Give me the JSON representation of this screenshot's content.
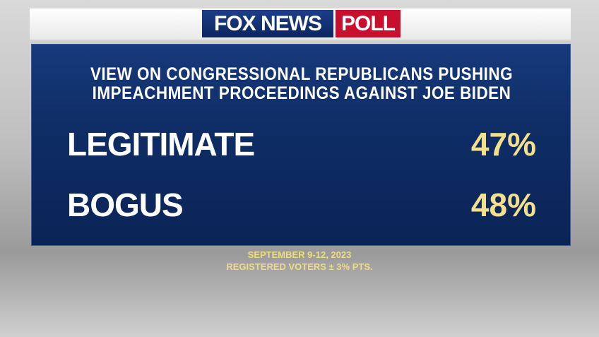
{
  "header": {
    "brand": "FOX NEWS",
    "badge": "POLL"
  },
  "title": [
    "VIEW ON CONGRESSIONAL REPUBLICANS PUSHING",
    "IMPEACHMENT PROCEEDINGS AGAINST JOE BIDEN"
  ],
  "rows": [
    {
      "label": "LEGITIMATE",
      "value": "47%"
    },
    {
      "label": "BOGUS",
      "value": "48%"
    }
  ],
  "footer": [
    "SEPTEMBER 9-12, 2023",
    "REGISTERED VOTERS ± 3% PTS."
  ]
}
